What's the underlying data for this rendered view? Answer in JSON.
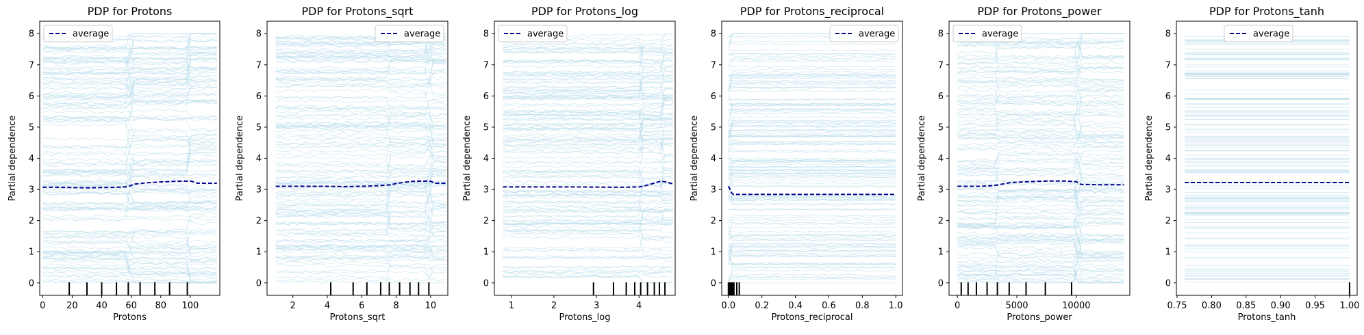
{
  "figure": {
    "ice_color": "#add8e6",
    "average_color": "#00008b",
    "frame_color": "#000000"
  },
  "chart_data": [
    {
      "type": "line",
      "title": "PDP for Protons",
      "xlabel": "Protons",
      "ylabel": "Partial dependence",
      "xlim": [
        -2,
        120
      ],
      "ylim": [
        -0.4,
        8.4
      ],
      "xticks": [
        0,
        20,
        40,
        60,
        80,
        100
      ],
      "xtick_labels": [
        "0",
        "20",
        "40",
        "60",
        "80",
        "100"
      ],
      "yticks": [
        0,
        1,
        2,
        3,
        4,
        5,
        6,
        7,
        8
      ],
      "ytick_labels": [
        "0",
        "1",
        "2",
        "3",
        "4",
        "5",
        "6",
        "7",
        "8"
      ],
      "legend": {
        "label": "average",
        "placement": "top-left"
      },
      "series": [
        {
          "name": "average",
          "x": [
            0,
            10,
            20,
            30,
            40,
            50,
            58,
            62,
            70,
            80,
            90,
            100,
            105,
            118
          ],
          "y": [
            3.07,
            3.07,
            3.06,
            3.05,
            3.06,
            3.07,
            3.09,
            3.17,
            3.21,
            3.24,
            3.26,
            3.27,
            3.2,
            3.2
          ]
        }
      ],
      "ice": {
        "steps": [
          60,
          100
        ],
        "spread": 0.6,
        "wiggle": 0.1
      },
      "rug": [
        18,
        30,
        40,
        50,
        58,
        66,
        76,
        86,
        98
      ]
    },
    {
      "type": "line",
      "title": "PDP for Protons_sqrt",
      "xlabel": "Protons_sqrt",
      "ylabel": "Partial dependence",
      "xlim": [
        0.5,
        11
      ],
      "ylim": [
        -0.4,
        8.4
      ],
      "xticks": [
        2,
        4,
        6,
        8,
        10
      ],
      "xtick_labels": [
        "2",
        "4",
        "6",
        "8",
        "10"
      ],
      "yticks": [
        0,
        1,
        2,
        3,
        4,
        5,
        6,
        7,
        8
      ],
      "ytick_labels": [
        "0",
        "1",
        "2",
        "3",
        "4",
        "5",
        "6",
        "7",
        "8"
      ],
      "legend": {
        "label": "average",
        "placement": "top-right"
      },
      "series": [
        {
          "name": "average",
          "x": [
            1,
            2,
            3,
            4,
            5,
            6,
            7,
            7.7,
            8,
            8.5,
            9,
            9.5,
            10,
            10.3,
            10.9
          ],
          "y": [
            3.1,
            3.1,
            3.1,
            3.1,
            3.09,
            3.1,
            3.12,
            3.15,
            3.19,
            3.23,
            3.26,
            3.27,
            3.26,
            3.2,
            3.2
          ]
        }
      ],
      "ice": {
        "steps": [
          7.7,
          10
        ],
        "spread": 0.5,
        "wiggle": 0.1
      },
      "rug": [
        4.2,
        5.5,
        6.3,
        7.1,
        7.6,
        8.2,
        8.8,
        9.3,
        9.9
      ]
    },
    {
      "type": "line",
      "title": "PDP for Protons_log",
      "xlabel": "Protons_log",
      "ylabel": "Partial dependence",
      "xlim": [
        0.6,
        4.85
      ],
      "ylim": [
        -0.4,
        8.4
      ],
      "xticks": [
        1,
        2,
        3,
        4
      ],
      "xtick_labels": [
        "1",
        "2",
        "3",
        "4"
      ],
      "yticks": [
        0,
        1,
        2,
        3,
        4,
        5,
        6,
        7,
        8
      ],
      "ytick_labels": [
        "0",
        "1",
        "2",
        "3",
        "4",
        "5",
        "6",
        "7",
        "8"
      ],
      "legend": {
        "label": "average",
        "placement": "top-left"
      },
      "series": [
        {
          "name": "average",
          "x": [
            0.8,
            1.5,
            2.5,
            3.5,
            4.0,
            4.1,
            4.3,
            4.5,
            4.6,
            4.8
          ],
          "y": [
            3.08,
            3.08,
            3.08,
            3.07,
            3.08,
            3.1,
            3.18,
            3.26,
            3.25,
            3.18
          ]
        }
      ],
      "ice": {
        "steps": [
          4.1,
          4.6
        ],
        "spread": 0.6,
        "wiggle": 0.08
      },
      "rug": [
        2.93,
        3.4,
        3.7,
        3.9,
        4.04,
        4.2,
        4.36,
        4.48,
        4.61
      ]
    },
    {
      "type": "line",
      "title": "PDP for Protons_reciprocal",
      "xlabel": "Protons_reciprocal",
      "ylabel": "Partial dependence",
      "xlim": [
        -0.04,
        1.04
      ],
      "ylim": [
        -0.4,
        8.4
      ],
      "xticks": [
        0.0,
        0.2,
        0.4,
        0.6,
        0.8,
        1.0
      ],
      "xtick_labels": [
        "0.0",
        "0.2",
        "0.4",
        "0.6",
        "0.8",
        "1.0"
      ],
      "yticks": [
        0,
        1,
        2,
        3,
        4,
        5,
        6,
        7,
        8
      ],
      "ytick_labels": [
        "0",
        "1",
        "2",
        "3",
        "4",
        "5",
        "6",
        "7",
        "8"
      ],
      "legend": {
        "label": "average",
        "placement": "top-right"
      },
      "series": [
        {
          "name": "average",
          "x": [
            0.0,
            0.01,
            0.02,
            0.03,
            0.05,
            0.2,
            0.5,
            1.0
          ],
          "y": [
            3.1,
            3.0,
            2.88,
            2.84,
            2.84,
            2.84,
            2.84,
            2.84
          ]
        }
      ],
      "ice": {
        "steps": [
          0.03
        ],
        "spread": 0.5,
        "wiggle": 0.05
      },
      "rug": [
        0.0,
        0.008,
        0.012,
        0.017,
        0.02,
        0.025,
        0.033,
        0.05,
        0.065
      ]
    },
    {
      "type": "line",
      "title": "PDP for Protons_power",
      "xlabel": "Protons_power",
      "ylabel": "Partial dependence",
      "xlim": [
        -700,
        14500
      ],
      "ylim": [
        -0.4,
        8.4
      ],
      "xticks": [
        0,
        5000,
        10000
      ],
      "xtick_labels": [
        "0",
        "5000",
        "10000"
      ],
      "yticks": [
        0,
        1,
        2,
        3,
        4,
        5,
        6,
        7,
        8
      ],
      "ytick_labels": [
        "0",
        "1",
        "2",
        "3",
        "4",
        "5",
        "6",
        "7",
        "8"
      ],
      "legend": {
        "label": "average",
        "placement": "top-left"
      },
      "series": [
        {
          "name": "average",
          "x": [
            0,
            1000,
            2000,
            3000,
            3600,
            4500,
            6000,
            7500,
            9000,
            10000,
            10400,
            12000,
            14000
          ],
          "y": [
            3.1,
            3.1,
            3.1,
            3.12,
            3.16,
            3.22,
            3.25,
            3.27,
            3.27,
            3.25,
            3.16,
            3.15,
            3.15
          ]
        }
      ],
      "ice": {
        "steps": [
          3600,
          10300
        ],
        "spread": 0.6,
        "wiggle": 0.1
      },
      "rug": [
        324,
        900,
        1600,
        2500,
        3364,
        4356,
        5776,
        7396,
        9604
      ]
    },
    {
      "type": "line",
      "title": "PDP for Protons_tanh",
      "xlabel": "Protons_tanh",
      "ylabel": "Partial dependence",
      "xlim": [
        0.749,
        1.011
      ],
      "ylim": [
        -0.4,
        8.4
      ],
      "xticks": [
        0.75,
        0.8,
        0.85,
        0.9,
        0.95,
        1.0
      ],
      "xtick_labels": [
        "0.75",
        "0.80",
        "0.85",
        "0.90",
        "0.95",
        "1.00"
      ],
      "yticks": [
        0,
        1,
        2,
        3,
        4,
        5,
        6,
        7,
        8
      ],
      "ytick_labels": [
        "0",
        "1",
        "2",
        "3",
        "4",
        "5",
        "6",
        "7",
        "8"
      ],
      "legend": {
        "label": "average",
        "placement": "top-center"
      },
      "series": [
        {
          "name": "average",
          "x": [
            0.761,
            1.0
          ],
          "y": [
            3.22,
            3.22
          ]
        }
      ],
      "ice": {
        "steps": [],
        "spread": 0.0,
        "wiggle": 0.0
      },
      "rug": [
        1.0
      ]
    }
  ]
}
